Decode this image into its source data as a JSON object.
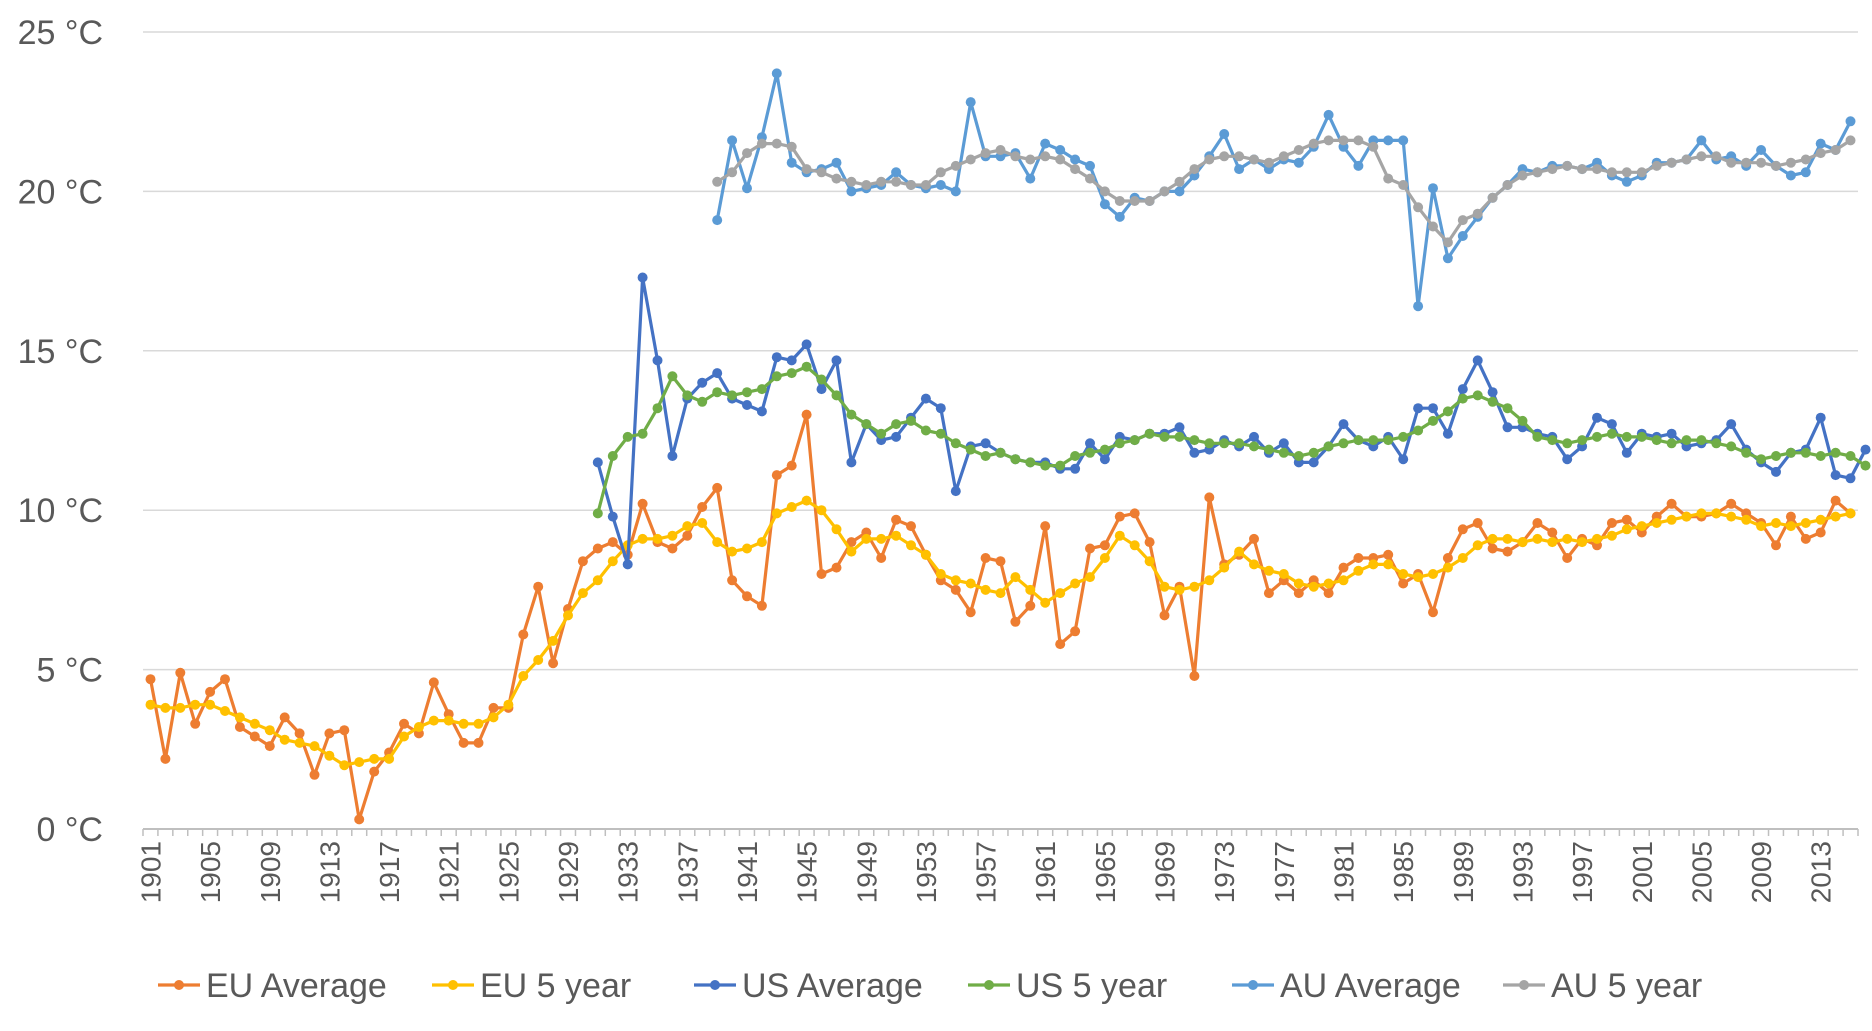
{
  "chart_data": {
    "type": "line",
    "title": "",
    "xlabel": "",
    "ylabel": "",
    "ylim": [
      0,
      25
    ],
    "xlim": [
      1901,
      2015
    ],
    "grid": true,
    "legend_position": "bottom",
    "yticks": [
      0,
      5,
      10,
      15,
      20,
      25
    ],
    "ytick_labels": [
      "0 °C",
      "5 °C",
      "10 °C",
      "15 °C",
      "20 °C",
      "25 °C"
    ],
    "xticks": [
      1901,
      1905,
      1909,
      1913,
      1917,
      1921,
      1925,
      1929,
      1933,
      1937,
      1941,
      1945,
      1949,
      1953,
      1957,
      1961,
      1965,
      1969,
      1973,
      1977,
      1981,
      1985,
      1989,
      1993,
      1997,
      2001,
      2005,
      2009,
      2013
    ],
    "series": [
      {
        "name": "EU Average",
        "color": "#ED7D31",
        "start_year": 1901,
        "values": [
          4.7,
          2.2,
          4.9,
          3.3,
          4.3,
          4.7,
          3.2,
          2.9,
          2.6,
          3.5,
          3.0,
          1.7,
          3.0,
          3.1,
          0.3,
          1.8,
          2.4,
          3.3,
          3.0,
          4.6,
          3.6,
          2.7,
          2.7,
          3.8,
          3.8,
          6.1,
          7.6,
          5.2,
          6.9,
          8.4,
          8.8,
          9.0,
          8.6,
          10.2,
          9.0,
          8.8,
          9.2,
          10.1,
          10.7,
          7.8,
          7.3,
          7.0,
          11.1,
          11.4,
          13.0,
          8.0,
          8.2,
          9.0,
          9.3,
          8.5,
          9.7,
          9.5,
          8.6,
          7.8,
          7.5,
          6.8,
          8.5,
          8.4,
          6.5,
          7.0,
          9.5,
          5.8,
          6.2,
          8.8,
          8.9,
          9.8,
          9.9,
          9.0,
          6.7,
          7.6,
          4.8,
          10.4,
          8.3,
          8.6,
          9.1,
          7.4,
          7.8,
          7.4,
          7.8,
          7.4,
          8.2,
          8.5,
          8.5,
          8.6,
          7.7,
          8.0,
          6.8,
          8.5,
          9.4,
          9.6,
          8.8,
          8.7,
          9.0,
          9.6,
          9.3,
          8.5,
          9.1,
          8.9,
          9.6,
          9.7,
          9.3,
          9.8,
          10.2,
          9.8,
          9.8,
          9.9,
          10.2,
          9.9,
          9.6,
          8.9,
          9.8,
          9.1,
          9.3,
          10.3,
          9.9
        ]
      },
      {
        "name": "EU 5 year",
        "color": "#FFC000",
        "start_year": 1901,
        "values": [
          3.9,
          3.8,
          3.8,
          3.9,
          3.9,
          3.7,
          3.5,
          3.3,
          3.1,
          2.8,
          2.7,
          2.6,
          2.3,
          2.0,
          2.1,
          2.2,
          2.2,
          2.9,
          3.2,
          3.4,
          3.4,
          3.3,
          3.3,
          3.5,
          3.9,
          4.8,
          5.3,
          5.9,
          6.7,
          7.4,
          7.8,
          8.4,
          8.9,
          9.1,
          9.1,
          9.2,
          9.5,
          9.6,
          9.0,
          8.7,
          8.8,
          9.0,
          9.9,
          10.1,
          10.3,
          10.0,
          9.4,
          8.7,
          9.1,
          9.1,
          9.2,
          8.9,
          8.6,
          8.0,
          7.8,
          7.7,
          7.5,
          7.4,
          7.9,
          7.5,
          7.1,
          7.4,
          7.7,
          7.9,
          8.5,
          9.2,
          8.9,
          8.4,
          7.6,
          7.5,
          7.6,
          7.8,
          8.2,
          8.7,
          8.3,
          8.1,
          8.0,
          7.7,
          7.6,
          7.7,
          7.8,
          8.1,
          8.3,
          8.3,
          8.0,
          7.9,
          8.0,
          8.2,
          8.5,
          8.9,
          9.1,
          9.1,
          9.0,
          9.1,
          9.0,
          9.1,
          9.0,
          9.1,
          9.2,
          9.4,
          9.5,
          9.6,
          9.7,
          9.8,
          9.9,
          9.9,
          9.8,
          9.7,
          9.5,
          9.6,
          9.5,
          9.6,
          9.7,
          9.8,
          9.9
        ]
      },
      {
        "name": "US Average",
        "color": "#4472C4",
        "start_year": 1931,
        "values": [
          11.5,
          9.8,
          8.3,
          17.3,
          14.7,
          11.7,
          13.5,
          14.0,
          14.3,
          13.5,
          13.3,
          13.1,
          14.8,
          14.7,
          15.2,
          13.8,
          14.7,
          11.5,
          12.7,
          12.2,
          12.3,
          12.9,
          13.5,
          13.2,
          10.6,
          12.0,
          12.1,
          11.8,
          11.6,
          11.5,
          11.5,
          11.3,
          11.3,
          12.1,
          11.6,
          12.3,
          12.2,
          12.4,
          12.4,
          12.6,
          11.8,
          11.9,
          12.2,
          12.0,
          12.3,
          11.8,
          12.1,
          11.5,
          11.5,
          12.0,
          12.7,
          12.2,
          12.0,
          12.3,
          11.6,
          13.2,
          13.2,
          12.4,
          13.8,
          14.7,
          13.7,
          12.6,
          12.6,
          12.4,
          12.3,
          11.6,
          12.0,
          12.9,
          12.7,
          11.8,
          12.4,
          12.3,
          12.4,
          12.0,
          12.1,
          12.2,
          12.7,
          11.9,
          11.5,
          11.2,
          11.8,
          11.9,
          12.9,
          11.1,
          11.0,
          11.9
        ]
      },
      {
        "name": "US 5 year",
        "color": "#70AD47",
        "start_year": 1931,
        "values": [
          9.9,
          11.7,
          12.3,
          12.4,
          13.2,
          14.2,
          13.6,
          13.4,
          13.7,
          13.6,
          13.7,
          13.8,
          14.2,
          14.3,
          14.5,
          14.1,
          13.6,
          13.0,
          12.7,
          12.4,
          12.7,
          12.8,
          12.5,
          12.4,
          12.1,
          11.9,
          11.7,
          11.8,
          11.6,
          11.5,
          11.4,
          11.4,
          11.7,
          11.8,
          11.9,
          12.1,
          12.2,
          12.4,
          12.3,
          12.3,
          12.2,
          12.1,
          12.1,
          12.1,
          12.0,
          11.9,
          11.8,
          11.7,
          11.8,
          12.0,
          12.1,
          12.2,
          12.2,
          12.2,
          12.3,
          12.5,
          12.8,
          13.1,
          13.5,
          13.6,
          13.4,
          13.2,
          12.8,
          12.3,
          12.2,
          12.1,
          12.2,
          12.3,
          12.4,
          12.3,
          12.3,
          12.2,
          12.1,
          12.2,
          12.2,
          12.1,
          12.0,
          11.8,
          11.6,
          11.7,
          11.8,
          11.8,
          11.7,
          11.8,
          11.7,
          11.4
        ]
      },
      {
        "name": "AU Average",
        "color": "#5B9BD5",
        "start_year": 1939,
        "values": [
          19.1,
          21.6,
          20.1,
          21.7,
          23.7,
          20.9,
          20.6,
          20.7,
          20.9,
          20.0,
          20.1,
          20.2,
          20.6,
          20.2,
          20.1,
          20.2,
          20.0,
          22.8,
          21.1,
          21.1,
          21.2,
          20.4,
          21.5,
          21.3,
          21.0,
          20.8,
          19.6,
          19.2,
          19.8,
          19.7,
          20.0,
          20.0,
          20.5,
          21.1,
          21.8,
          20.7,
          21.0,
          20.7,
          21.0,
          20.9,
          21.4,
          22.4,
          21.4,
          20.8,
          21.6,
          21.6,
          21.6,
          16.4,
          20.1,
          17.9,
          18.6,
          19.2,
          19.8,
          20.2,
          20.7,
          20.6,
          20.8,
          20.8,
          20.7,
          20.9,
          20.5,
          20.3,
          20.5,
          20.9,
          20.9,
          21.0,
          21.6,
          21.0,
          21.1,
          20.8,
          21.3,
          20.8,
          20.5,
          20.6,
          21.5,
          21.3,
          22.2
        ]
      },
      {
        "name": "AU 5 year",
        "color": "#A5A5A5",
        "start_year": 1939,
        "values": [
          20.3,
          20.6,
          21.2,
          21.5,
          21.5,
          21.4,
          20.7,
          20.6,
          20.4,
          20.3,
          20.2,
          20.3,
          20.3,
          20.2,
          20.2,
          20.6,
          20.8,
          21.0,
          21.2,
          21.3,
          21.1,
          21.0,
          21.1,
          21.0,
          20.7,
          20.4,
          20.0,
          19.7,
          19.7,
          19.7,
          20.0,
          20.3,
          20.7,
          21.0,
          21.1,
          21.1,
          21.0,
          20.9,
          21.1,
          21.3,
          21.5,
          21.6,
          21.6,
          21.6,
          21.4,
          20.4,
          20.2,
          19.5,
          18.9,
          18.4,
          19.1,
          19.3,
          19.8,
          20.2,
          20.5,
          20.6,
          20.7,
          20.8,
          20.7,
          20.7,
          20.6,
          20.6,
          20.6,
          20.8,
          20.9,
          21.0,
          21.1,
          21.1,
          20.9,
          20.9,
          20.9,
          20.8,
          20.9,
          21.0,
          21.2,
          21.3,
          21.6
        ]
      }
    ]
  }
}
